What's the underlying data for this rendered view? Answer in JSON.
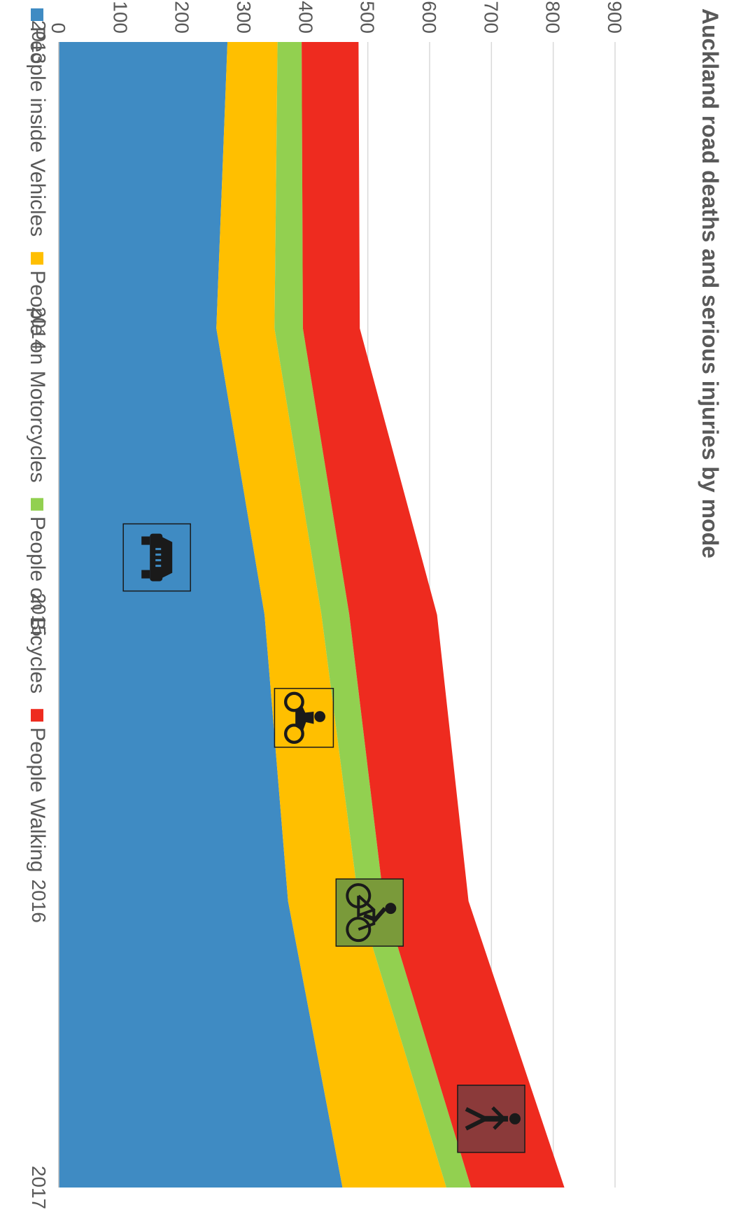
{
  "chart_data": {
    "type": "area",
    "stacked": true,
    "title": "Auckland road deaths and serious injuries by mode",
    "xlabel": "",
    "ylabel": "",
    "x": [
      "2013",
      "2014",
      "2015",
      "2016",
      "2017"
    ],
    "ylim": [
      0,
      900
    ],
    "yticks": [
      0,
      100,
      200,
      300,
      400,
      500,
      600,
      700,
      800,
      900
    ],
    "grid": true,
    "legend_position": "bottom",
    "series": [
      {
        "name": "People inside Vehicles",
        "color": "#3f8bc3",
        "icon": "car-icon",
        "values": [
          273,
          255,
          333,
          371,
          459
        ]
      },
      {
        "name": "People on Motorcycles",
        "color": "#ffbf00",
        "icon": "motorcycle-icon",
        "values": [
          81,
          94,
          92,
          114,
          168
        ]
      },
      {
        "name": "People on Bicycles",
        "color": "#92d050",
        "icon": "bicycle-icon",
        "values": [
          39,
          46,
          45,
          41,
          40
        ]
      },
      {
        "name": "People Walking",
        "color": "#ee2b1f",
        "icon": "pedestrian-icon",
        "values": [
          92,
          92,
          142,
          137,
          151
        ]
      }
    ]
  }
}
